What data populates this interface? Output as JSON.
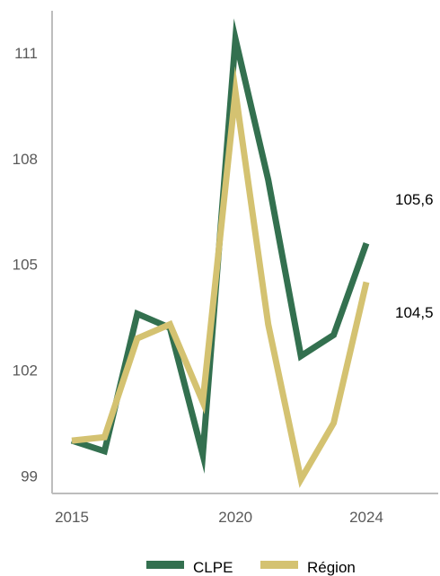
{
  "chart_data": {
    "type": "line",
    "title": "",
    "xlabel": "",
    "ylabel": "",
    "x": [
      2015,
      2016,
      2017,
      2018,
      2019,
      2020,
      2021,
      2022,
      2023,
      2024
    ],
    "x_ticks": [
      "2015",
      "2020",
      "2024"
    ],
    "xlim": [
      2015,
      2024
    ],
    "y_ticks": [
      "99",
      "102",
      "105",
      "108",
      "111"
    ],
    "ylim": [
      98.5,
      112.2
    ],
    "grid": false,
    "legend_position": "bottom",
    "series": [
      {
        "name": "CLPE",
        "color": "#33704f",
        "values": [
          100.0,
          99.7,
          103.6,
          103.2,
          99.6,
          111.4,
          107.4,
          102.4,
          103.0,
          105.6
        ],
        "end_label": "105,6"
      },
      {
        "name": "Région",
        "color": "#d4c271",
        "values": [
          100.0,
          100.1,
          102.9,
          103.3,
          101.1,
          109.9,
          103.3,
          98.9,
          100.5,
          104.5
        ],
        "end_label": "104,5"
      }
    ]
  }
}
